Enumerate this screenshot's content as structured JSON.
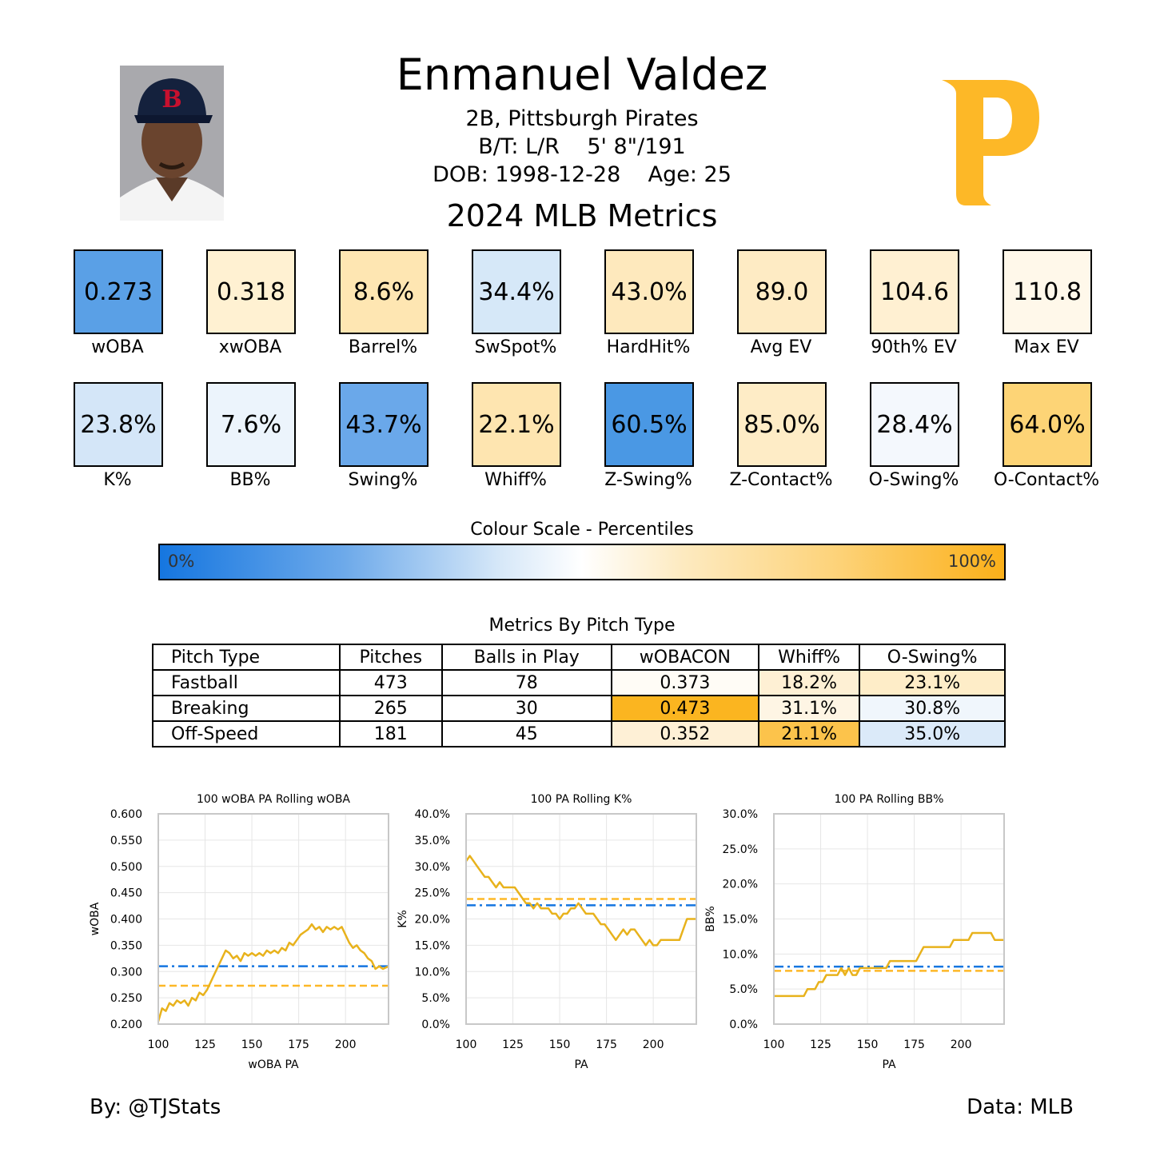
{
  "player": {
    "name": "Enmanuel Valdez",
    "position_team": "2B, Pittsburgh Pirates",
    "bats_throws": "B/T: L/R    5' 8\"/191",
    "dob_age": "DOB: 1998-12-28    Age: 25",
    "report_title": "2024 MLB Metrics",
    "logo_letter": "P",
    "logo_color": "#FDB827"
  },
  "metrics_row1": [
    {
      "value": "0.273",
      "label": "wOBA",
      "color": "#5aa0e6"
    },
    {
      "value": "0.318",
      "label": "xwOBA",
      "color": "#fff1d2"
    },
    {
      "value": "8.6%",
      "label": "Barrel%",
      "color": "#fee6b2"
    },
    {
      "value": "34.4%",
      "label": "SwSpot%",
      "color": "#d6e8f8"
    },
    {
      "value": "43.0%",
      "label": "HardHit%",
      "color": "#fee9bd"
    },
    {
      "value": "89.0",
      "label": "Avg EV",
      "color": "#feebc4"
    },
    {
      "value": "104.6",
      "label": "90th% EV",
      "color": "#fff0d2"
    },
    {
      "value": "110.8",
      "label": "Max EV",
      "color": "#fff8ea"
    }
  ],
  "metrics_row2": [
    {
      "value": "23.8%",
      "label": "K%",
      "color": "#d4e6f8"
    },
    {
      "value": "7.6%",
      "label": "BB%",
      "color": "#ecf4fc"
    },
    {
      "value": "43.7%",
      "label": "Swing%",
      "color": "#6aa8ea"
    },
    {
      "value": "22.1%",
      "label": "Whiff%",
      "color": "#fee5b0"
    },
    {
      "value": "60.5%",
      "label": "Z-Swing%",
      "color": "#4a98e4"
    },
    {
      "value": "85.0%",
      "label": "Z-Contact%",
      "color": "#feecc6"
    },
    {
      "value": "28.4%",
      "label": "O-Swing%",
      "color": "#f4f8fd"
    },
    {
      "value": "64.0%",
      "label": "O-Contact%",
      "color": "#fdd476"
    }
  ],
  "scale": {
    "title": "Colour Scale - Percentiles",
    "min_label": "0%",
    "max_label": "100%",
    "low_color": "#1576e0",
    "high_color": "#fbb019"
  },
  "pitch_table": {
    "title": "Metrics By Pitch Type",
    "headers": [
      "Pitch Type",
      "Pitches",
      "Balls in Play",
      "wOBACON",
      "Whiff%",
      "O-Swing%"
    ],
    "rows": [
      {
        "cells": [
          "Fastball",
          "473",
          "78",
          "0.373",
          "18.2%",
          "23.1%"
        ],
        "colors": [
          "#ffffff",
          "#ffffff",
          "#ffffff",
          "#fffcf6",
          "#fef0d4",
          "#feedc8"
        ]
      },
      {
        "cells": [
          "Breaking",
          "265",
          "30",
          "0.473",
          "31.1%",
          "30.8%"
        ],
        "colors": [
          "#ffffff",
          "#ffffff",
          "#ffffff",
          "#fbb520",
          "#fef5e4",
          "#f0f6fc"
        ]
      },
      {
        "cells": [
          "Off-Speed",
          "181",
          "45",
          "0.352",
          "21.1%",
          "35.0%"
        ],
        "colors": [
          "#ffffff",
          "#ffffff",
          "#ffffff",
          "#fef0d6",
          "#fcc34b",
          "#dbeaf9"
        ]
      }
    ]
  },
  "chart_data": [
    {
      "type": "line",
      "title": "100 wOBA PA Rolling wOBA",
      "xlabel": "wOBA PA",
      "ylabel": "wOBA",
      "xlim": [
        100,
        223
      ],
      "ylim": [
        0.2,
        0.6
      ],
      "xticks": [
        100,
        125,
        150,
        175,
        200
      ],
      "yticks": [
        0.2,
        0.25,
        0.3,
        0.35,
        0.4,
        0.45,
        0.5,
        0.55,
        0.6
      ],
      "ytick_labels": [
        "0.200",
        "0.250",
        "0.300",
        "0.350",
        "0.400",
        "0.450",
        "0.500",
        "0.550",
        "0.600"
      ],
      "grid": true,
      "reference_lines": [
        {
          "value": 0.31,
          "color": "#1576e0",
          "style": "dashdot"
        },
        {
          "value": 0.273,
          "color": "#FDB827",
          "style": "dashed"
        }
      ],
      "series": [
        {
          "color": "#E8B21C",
          "points": [
            [
              100,
              0.205
            ],
            [
              102,
              0.23
            ],
            [
              104,
              0.225
            ],
            [
              106,
              0.24
            ],
            [
              108,
              0.235
            ],
            [
              110,
              0.245
            ],
            [
              112,
              0.24
            ],
            [
              114,
              0.245
            ],
            [
              116,
              0.235
            ],
            [
              118,
              0.25
            ],
            [
              120,
              0.245
            ],
            [
              122,
              0.26
            ],
            [
              124,
              0.255
            ],
            [
              126,
              0.265
            ],
            [
              128,
              0.28
            ],
            [
              130,
              0.295
            ],
            [
              132,
              0.31
            ],
            [
              134,
              0.325
            ],
            [
              136,
              0.34
            ],
            [
              138,
              0.335
            ],
            [
              140,
              0.325
            ],
            [
              142,
              0.33
            ],
            [
              144,
              0.32
            ],
            [
              146,
              0.335
            ],
            [
              148,
              0.33
            ],
            [
              150,
              0.335
            ],
            [
              152,
              0.33
            ],
            [
              154,
              0.335
            ],
            [
              156,
              0.33
            ],
            [
              158,
              0.34
            ],
            [
              160,
              0.335
            ],
            [
              162,
              0.34
            ],
            [
              164,
              0.335
            ],
            [
              166,
              0.345
            ],
            [
              168,
              0.34
            ],
            [
              170,
              0.355
            ],
            [
              172,
              0.35
            ],
            [
              174,
              0.36
            ],
            [
              176,
              0.37
            ],
            [
              178,
              0.375
            ],
            [
              180,
              0.38
            ],
            [
              182,
              0.39
            ],
            [
              184,
              0.38
            ],
            [
              186,
              0.385
            ],
            [
              188,
              0.375
            ],
            [
              190,
              0.385
            ],
            [
              192,
              0.38
            ],
            [
              194,
              0.385
            ],
            [
              196,
              0.38
            ],
            [
              198,
              0.385
            ],
            [
              200,
              0.37
            ],
            [
              202,
              0.355
            ],
            [
              204,
              0.345
            ],
            [
              206,
              0.35
            ],
            [
              208,
              0.34
            ],
            [
              210,
              0.335
            ],
            [
              212,
              0.325
            ],
            [
              214,
              0.32
            ],
            [
              216,
              0.305
            ],
            [
              218,
              0.31
            ],
            [
              220,
              0.305
            ],
            [
              223,
              0.31
            ]
          ]
        }
      ]
    },
    {
      "type": "line",
      "title": "100 PA Rolling K%",
      "xlabel": "PA",
      "ylabel": "K%",
      "xlim": [
        100,
        223
      ],
      "ylim": [
        0,
        40
      ],
      "xticks": [
        100,
        125,
        150,
        175,
        200
      ],
      "yticks": [
        0,
        5,
        10,
        15,
        20,
        25,
        30,
        35,
        40
      ],
      "ytick_labels": [
        "0.0%",
        "5.0%",
        "10.0%",
        "15.0%",
        "20.0%",
        "25.0%",
        "30.0%",
        "35.0%",
        "40.0%"
      ],
      "grid": true,
      "reference_lines": [
        {
          "value": 22.6,
          "color": "#1576e0",
          "style": "dashdot"
        },
        {
          "value": 23.8,
          "color": "#FDB827",
          "style": "dashed"
        }
      ],
      "series": [
        {
          "color": "#E8B21C",
          "points": [
            [
              100,
              31
            ],
            [
              102,
              32
            ],
            [
              104,
              31
            ],
            [
              106,
              30
            ],
            [
              108,
              29
            ],
            [
              110,
              28
            ],
            [
              112,
              28
            ],
            [
              114,
              27
            ],
            [
              116,
              26
            ],
            [
              118,
              27
            ],
            [
              120,
              26
            ],
            [
              122,
              26
            ],
            [
              124,
              26
            ],
            [
              126,
              26
            ],
            [
              128,
              25
            ],
            [
              130,
              24
            ],
            [
              132,
              23
            ],
            [
              134,
              23
            ],
            [
              136,
              22
            ],
            [
              138,
              23
            ],
            [
              140,
              22
            ],
            [
              142,
              22
            ],
            [
              144,
              22
            ],
            [
              146,
              21
            ],
            [
              148,
              21
            ],
            [
              150,
              20
            ],
            [
              152,
              21
            ],
            [
              154,
              21
            ],
            [
              156,
              22
            ],
            [
              158,
              22
            ],
            [
              160,
              23
            ],
            [
              162,
              22
            ],
            [
              164,
              21
            ],
            [
              166,
              21
            ],
            [
              168,
              21
            ],
            [
              170,
              20
            ],
            [
              172,
              19
            ],
            [
              174,
              19
            ],
            [
              176,
              18
            ],
            [
              178,
              17
            ],
            [
              180,
              16
            ],
            [
              182,
              17
            ],
            [
              184,
              18
            ],
            [
              186,
              17
            ],
            [
              188,
              18
            ],
            [
              190,
              18
            ],
            [
              192,
              17
            ],
            [
              194,
              16
            ],
            [
              196,
              15
            ],
            [
              198,
              16
            ],
            [
              200,
              15
            ],
            [
              202,
              15
            ],
            [
              204,
              16
            ],
            [
              206,
              16
            ],
            [
              208,
              16
            ],
            [
              210,
              16
            ],
            [
              212,
              16
            ],
            [
              214,
              16
            ],
            [
              216,
              18
            ],
            [
              218,
              20
            ],
            [
              220,
              20
            ],
            [
              223,
              20
            ]
          ]
        }
      ]
    },
    {
      "type": "line",
      "title": "100 PA Rolling BB%",
      "xlabel": "PA",
      "ylabel": "BB%",
      "xlim": [
        100,
        223
      ],
      "ylim": [
        0,
        30
      ],
      "xticks": [
        100,
        125,
        150,
        175,
        200
      ],
      "yticks": [
        0,
        5,
        10,
        15,
        20,
        25,
        30
      ],
      "ytick_labels": [
        "0.0%",
        "5.0%",
        "10.0%",
        "15.0%",
        "20.0%",
        "25.0%",
        "30.0%"
      ],
      "grid": true,
      "reference_lines": [
        {
          "value": 8.2,
          "color": "#1576e0",
          "style": "dashdot"
        },
        {
          "value": 7.6,
          "color": "#FDB827",
          "style": "dashed"
        }
      ],
      "series": [
        {
          "color": "#E8B21C",
          "points": [
            [
              100,
              4
            ],
            [
              104,
              4
            ],
            [
              108,
              4
            ],
            [
              112,
              4
            ],
            [
              116,
              4
            ],
            [
              118,
              5
            ],
            [
              122,
              5
            ],
            [
              124,
              6
            ],
            [
              126,
              6
            ],
            [
              128,
              7
            ],
            [
              130,
              7
            ],
            [
              132,
              7
            ],
            [
              134,
              7
            ],
            [
              136,
              8
            ],
            [
              138,
              7
            ],
            [
              140,
              8
            ],
            [
              142,
              7
            ],
            [
              144,
              7
            ],
            [
              146,
              8
            ],
            [
              148,
              8
            ],
            [
              150,
              8
            ],
            [
              152,
              8
            ],
            [
              154,
              8
            ],
            [
              156,
              8
            ],
            [
              158,
              8
            ],
            [
              160,
              8
            ],
            [
              162,
              9
            ],
            [
              164,
              9
            ],
            [
              166,
              9
            ],
            [
              168,
              9
            ],
            [
              170,
              9
            ],
            [
              172,
              9
            ],
            [
              174,
              9
            ],
            [
              176,
              9
            ],
            [
              178,
              10
            ],
            [
              180,
              11
            ],
            [
              182,
              11
            ],
            [
              184,
              11
            ],
            [
              186,
              11
            ],
            [
              188,
              11
            ],
            [
              190,
              11
            ],
            [
              192,
              11
            ],
            [
              194,
              11
            ],
            [
              196,
              12
            ],
            [
              198,
              12
            ],
            [
              200,
              12
            ],
            [
              202,
              12
            ],
            [
              204,
              12
            ],
            [
              206,
              13
            ],
            [
              208,
              13
            ],
            [
              210,
              13
            ],
            [
              212,
              13
            ],
            [
              214,
              13
            ],
            [
              216,
              13
            ],
            [
              218,
              12
            ],
            [
              220,
              12
            ],
            [
              223,
              12
            ]
          ]
        }
      ]
    }
  ],
  "footer": {
    "byline": "By: @TJStats",
    "source": "Data: MLB"
  }
}
